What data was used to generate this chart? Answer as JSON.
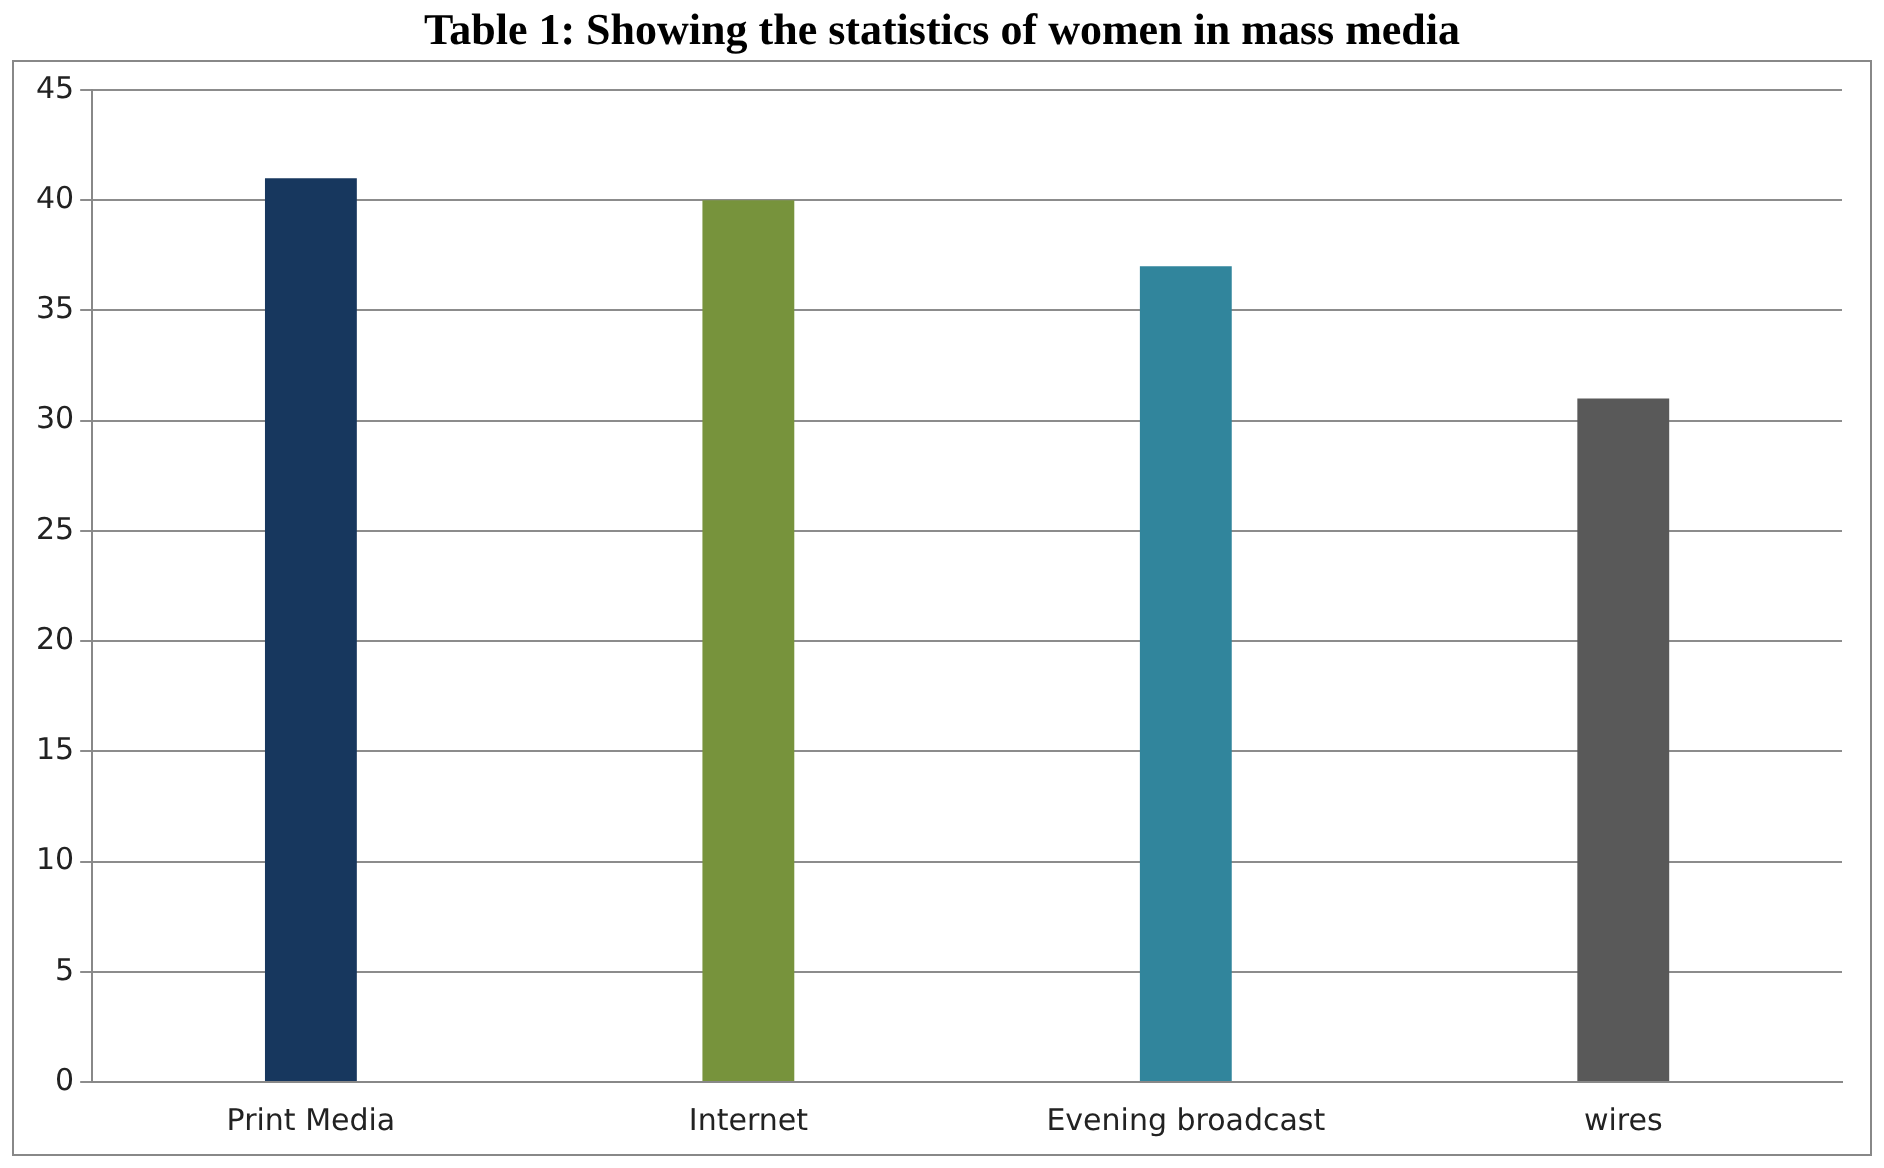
{
  "chart_data": {
    "type": "bar",
    "title": "Table 1: Showing the statistics of women in mass media",
    "categories": [
      "Print Media",
      "Internet",
      "Evening broadcast",
      "wires"
    ],
    "values": [
      41,
      40,
      37,
      31
    ],
    "colors": [
      "#17375e",
      "#77933c",
      "#31859c",
      "#595959"
    ],
    "ylim": [
      0,
      45
    ],
    "yticks": [
      0,
      5,
      10,
      15,
      20,
      25,
      30,
      35,
      40,
      45
    ],
    "grid": "y",
    "legend": false
  }
}
